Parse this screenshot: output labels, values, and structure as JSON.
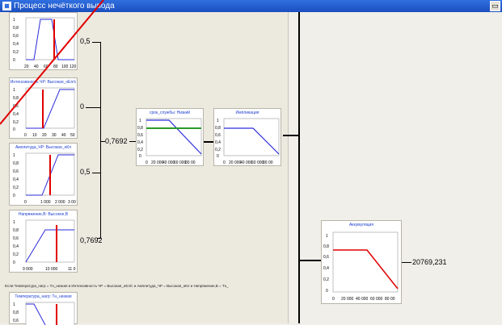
{
  "window": {
    "title": "Процесс нечёткого вывода",
    "restore_glyph": "▭"
  },
  "inputs": [
    {
      "title": "Температура_нагр…",
      "value": "0,5",
      "xticks": [
        "20",
        "40",
        "60",
        "80",
        "100",
        "120"
      ]
    },
    {
      "title": "Интенсивность ЧР: Высокая_нЕл/с",
      "value": "0",
      "xticks": [
        "0",
        "10",
        "20",
        "30",
        "40",
        "50"
      ]
    },
    {
      "title": "Амплитуда_ЧР: Высокая_нКл",
      "value": "0,5",
      "xticks": [
        "0",
        "1 000",
        "2 000",
        "3 00"
      ]
    },
    {
      "title": "Напряжение,В: Высокое,В",
      "value": "0,7692",
      "xticks": [
        "9 000",
        "10 000",
        "11 0"
      ]
    }
  ],
  "yticks": [
    "1",
    "0,8",
    "0,6",
    "0,4",
    "0,2",
    "0"
  ],
  "min_value": "0,7692",
  "rule_box": {
    "title": "срок_службы: Низкий",
    "xticks": [
      "0",
      "20 000",
      "40 000",
      "60 000",
      "80 00"
    ]
  },
  "implication_box": {
    "title": "Импликация",
    "xticks": [
      "0",
      "20 000",
      "40 000",
      "60 000",
      "80 00"
    ]
  },
  "accumulation_box": {
    "title": "Аккумуляция",
    "xticks": [
      "0",
      "20 000",
      "40 000",
      "60 000",
      "80 00"
    ]
  },
  "output_value": "20769,231",
  "rule_text": "Если Температура_нагр = Тн_низкая и Интенсивность ЧР = Высокая_нЕл/с и Амплитуда_ЧР = Высокая_нКл и Напряжение,В = Тн_",
  "second_rule_input": {
    "title": "Температура_нагр: Тн_низкая"
  },
  "colors": {
    "blue_curve": "#2b2bdc",
    "red_cut": "#e00000",
    "green_level": "#2a9a2a",
    "title_text": "#1f3fd0"
  }
}
